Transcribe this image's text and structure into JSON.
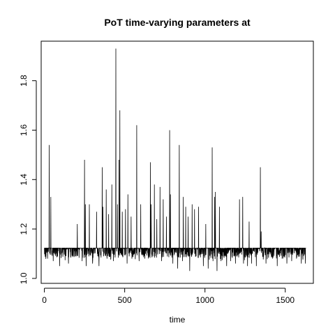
{
  "chart_data": {
    "type": "line",
    "title": "PoT time-varying parameters at",
    "xlabel": "time",
    "ylabel": "",
    "xlim": [
      -20,
      1675
    ],
    "ylim": [
      0.98,
      1.96
    ],
    "xticks": [
      0,
      500,
      1000,
      1500
    ],
    "yticks": [
      1.0,
      1.2,
      1.4,
      1.6,
      1.8
    ],
    "xtick_labels": [
      "0",
      "500",
      "1000",
      "1500"
    ],
    "ytick_labels": [
      "1.0",
      "1.2",
      "1.4",
      "1.6",
      "1.8"
    ],
    "n_points": 1630,
    "baseline": 1.123,
    "grid": false,
    "series": [
      {
        "spikes_up": [
          [
            30,
            1.54
          ],
          [
            40,
            1.33
          ],
          [
            205,
            1.22
          ],
          [
            250,
            1.48
          ],
          [
            255,
            1.3
          ],
          [
            280,
            1.3
          ],
          [
            325,
            1.27
          ],
          [
            360,
            1.45
          ],
          [
            365,
            1.29
          ],
          [
            385,
            1.36
          ],
          [
            400,
            1.26
          ],
          [
            420,
            1.38
          ],
          [
            445,
            1.93
          ],
          [
            455,
            1.3
          ],
          [
            465,
            1.48
          ],
          [
            470,
            1.68
          ],
          [
            485,
            1.27
          ],
          [
            505,
            1.28
          ],
          [
            520,
            1.34
          ],
          [
            540,
            1.25
          ],
          [
            575,
            1.62
          ],
          [
            600,
            1.3
          ],
          [
            660,
            1.47
          ],
          [
            665,
            1.3
          ],
          [
            685,
            1.38
          ],
          [
            700,
            1.24
          ],
          [
            720,
            1.37
          ],
          [
            740,
            1.32
          ],
          [
            760,
            1.25
          ],
          [
            780,
            1.6
          ],
          [
            785,
            1.34
          ],
          [
            840,
            1.54
          ],
          [
            865,
            1.33
          ],
          [
            880,
            1.29
          ],
          [
            895,
            1.25
          ],
          [
            920,
            1.3
          ],
          [
            935,
            1.28
          ],
          [
            960,
            1.29
          ],
          [
            1005,
            1.22
          ],
          [
            1045,
            1.53
          ],
          [
            1060,
            1.33
          ],
          [
            1065,
            1.35
          ],
          [
            1090,
            1.29
          ],
          [
            1215,
            1.32
          ],
          [
            1235,
            1.33
          ],
          [
            1275,
            1.23
          ],
          [
            1345,
            1.45
          ],
          [
            1350,
            1.19
          ]
        ],
        "dips": [
          [
            10,
            1.09
          ],
          [
            20,
            1.08
          ],
          [
            55,
            1.07
          ],
          [
            95,
            1.05
          ],
          [
            150,
            1.06
          ],
          [
            205,
            1.05
          ],
          [
            235,
            1.07
          ],
          [
            260,
            1.05
          ],
          [
            300,
            1.06
          ],
          [
            340,
            1.05
          ],
          [
            390,
            1.08
          ],
          [
            430,
            1.07
          ],
          [
            470,
            1.04
          ],
          [
            515,
            1.06
          ],
          [
            545,
            1.08
          ],
          [
            590,
            1.07
          ],
          [
            625,
            1.08
          ],
          [
            660,
            1.07
          ],
          [
            700,
            1.05
          ],
          [
            730,
            1.07
          ],
          [
            760,
            1.05
          ],
          [
            780,
            1.0
          ],
          [
            800,
            1.06
          ],
          [
            830,
            1.04
          ],
          [
            860,
            1.07
          ],
          [
            880,
            1.02
          ],
          [
            905,
            1.03
          ],
          [
            935,
            1.06
          ],
          [
            960,
            1.04
          ],
          [
            990,
            1.05
          ],
          [
            1020,
            1.04
          ],
          [
            1050,
            1.07
          ],
          [
            1075,
            1.03
          ],
          [
            1100,
            1.07
          ],
          [
            1135,
            1.05
          ],
          [
            1160,
            1.07
          ],
          [
            1190,
            1.06
          ],
          [
            1215,
            1.04
          ],
          [
            1240,
            1.06
          ],
          [
            1265,
            1.05
          ],
          [
            1290,
            1.06
          ],
          [
            1320,
            1.05
          ],
          [
            1350,
            1.07
          ],
          [
            1380,
            1.06
          ],
          [
            1420,
            1.08
          ],
          [
            1450,
            1.05
          ],
          [
            1480,
            1.08
          ],
          [
            1510,
            1.06
          ],
          [
            1540,
            1.07
          ],
          [
            1570,
            1.08
          ],
          [
            1600,
            1.06
          ],
          [
            1625,
            1.06
          ]
        ]
      }
    ]
  }
}
